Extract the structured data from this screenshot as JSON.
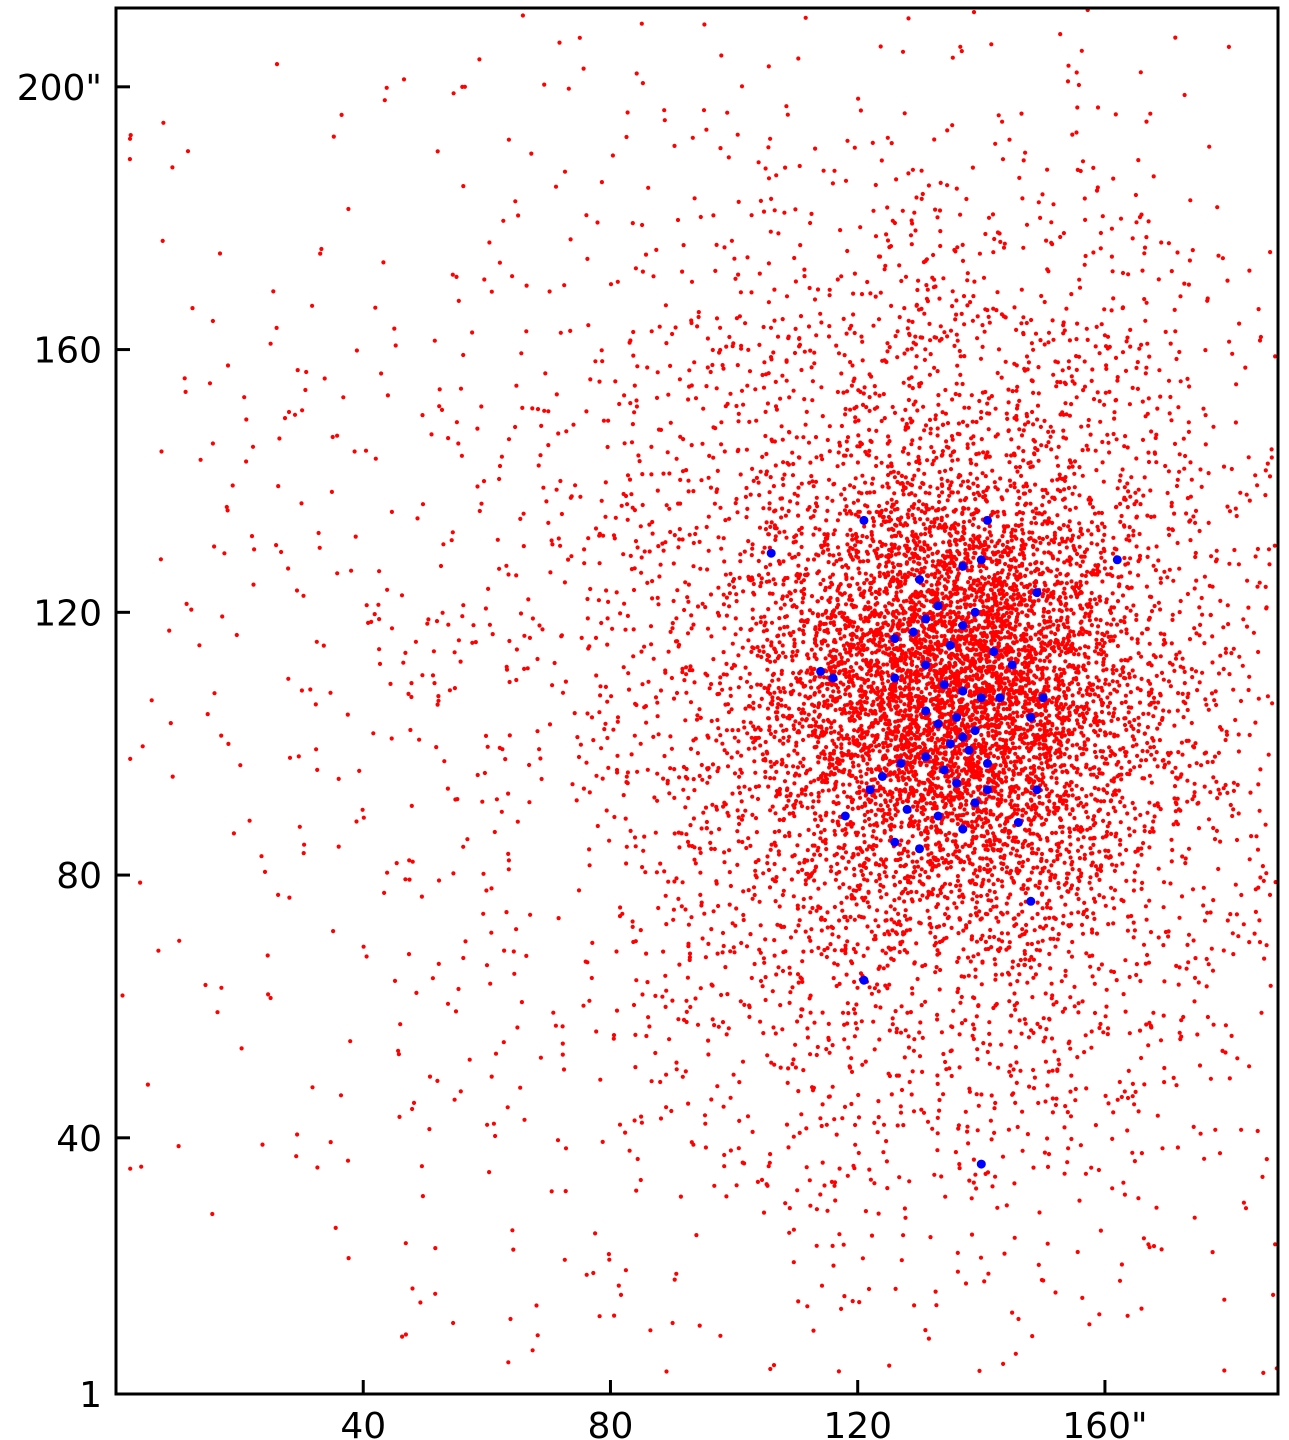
{
  "chart_data": {
    "type": "scatter",
    "title": "",
    "xlabel": "",
    "ylabel": "",
    "xlim": [
      0,
      188
    ],
    "ylim": [
      1,
      212
    ],
    "grid": false,
    "x_ticks": [
      {
        "value": 40,
        "label": "40"
      },
      {
        "value": 80,
        "label": "80"
      },
      {
        "value": 120,
        "label": "120"
      },
      {
        "value": 160,
        "label": "160\""
      }
    ],
    "y_ticks": [
      {
        "value": 1,
        "label": "1"
      },
      {
        "value": 40,
        "label": "40"
      },
      {
        "value": 80,
        "label": "80"
      },
      {
        "value": 120,
        "label": "120"
      },
      {
        "value": 160,
        "label": "160"
      },
      {
        "value": 200,
        "label": "200\""
      }
    ],
    "series": [
      {
        "color": "#ff0000",
        "marker": "small-dot",
        "distribution": {
          "clusters": [
            {
              "center": [
                136,
                108
              ],
              "sigma": [
                14,
                15
              ],
              "count": 4200
            },
            {
              "center": [
                136,
                108
              ],
              "sigma": [
                26,
                38
              ],
              "count": 5000
            },
            {
              "center": [
                80,
                110
              ],
              "sigma": [
                40,
                55
              ],
              "count": 1000
            }
          ]
        }
      },
      {
        "color": "#0000ff",
        "marker": "dot",
        "points": [
          [
            121,
            134
          ],
          [
            141,
            134
          ],
          [
            106,
            129
          ],
          [
            162,
            128
          ],
          [
            140,
            128
          ],
          [
            137,
            127
          ],
          [
            130,
            125
          ],
          [
            149,
            123
          ],
          [
            133,
            121
          ],
          [
            131,
            119
          ],
          [
            139,
            120
          ],
          [
            137,
            118
          ],
          [
            129,
            117
          ],
          [
            126,
            116
          ],
          [
            135,
            115
          ],
          [
            142,
            114
          ],
          [
            131,
            112
          ],
          [
            145,
            112
          ],
          [
            114,
            111
          ],
          [
            116,
            110
          ],
          [
            126,
            110
          ],
          [
            134,
            109
          ],
          [
            137,
            108
          ],
          [
            140,
            107
          ],
          [
            143,
            107
          ],
          [
            150,
            107
          ],
          [
            131,
            105
          ],
          [
            136,
            104
          ],
          [
            148,
            104
          ],
          [
            133,
            103
          ],
          [
            139,
            102
          ],
          [
            137,
            101
          ],
          [
            135,
            100
          ],
          [
            138,
            99
          ],
          [
            131,
            98
          ],
          [
            127,
            97
          ],
          [
            141,
            97
          ],
          [
            134,
            96
          ],
          [
            124,
            95
          ],
          [
            136,
            94
          ],
          [
            141,
            93
          ],
          [
            149,
            93
          ],
          [
            122,
            93
          ],
          [
            139,
            91
          ],
          [
            128,
            90
          ],
          [
            118,
            89
          ],
          [
            133,
            89
          ],
          [
            146,
            88
          ],
          [
            137,
            87
          ],
          [
            126,
            85
          ],
          [
            130,
            84
          ],
          [
            148,
            76
          ],
          [
            121,
            64
          ],
          [
            140,
            36
          ]
        ]
      }
    ]
  }
}
